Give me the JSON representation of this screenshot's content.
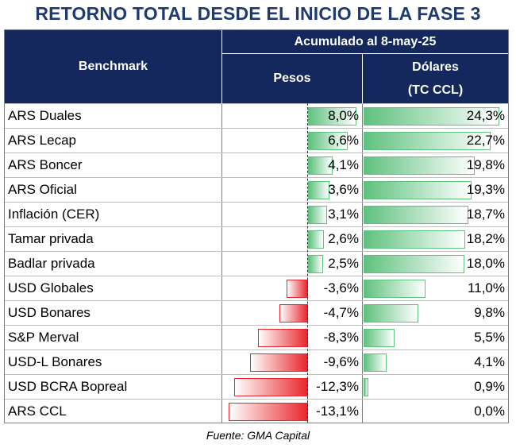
{
  "title": "RETORNO TOTAL DESDE EL INICIO DE LA FASE 3",
  "headers": {
    "benchmark": "Benchmark",
    "acumulado": "Acumulado al 8-may-25",
    "pesos": "Pesos",
    "dolares_line1": "Dólares",
    "dolares_line2": "(TC CCL)"
  },
  "source": "Fuente: GMA Capital",
  "colors": {
    "header_bg": "#14285e",
    "title": "#1f3a6e",
    "positive": "#5fc17e",
    "negative": "#e8262c"
  },
  "chart_data": {
    "type": "table",
    "columns": [
      "Pesos",
      "Dólares (TC CCL)"
    ],
    "rows": [
      {
        "name": "ARS Duales",
        "pesos": 8.0,
        "pesos_label": "8,0%",
        "dolares": 24.3,
        "dolares_label": "24,3%"
      },
      {
        "name": "ARS Lecap",
        "pesos": 6.6,
        "pesos_label": "6,6%",
        "dolares": 22.7,
        "dolares_label": "22,7%"
      },
      {
        "name": "ARS Boncer",
        "pesos": 4.1,
        "pesos_label": "4,1%",
        "dolares": 19.8,
        "dolares_label": "19,8%"
      },
      {
        "name": "ARS Oficial",
        "pesos": 3.6,
        "pesos_label": "3,6%",
        "dolares": 19.3,
        "dolares_label": "19,3%"
      },
      {
        "name": "Inflación (CER)",
        "pesos": 3.1,
        "pesos_label": "3,1%",
        "dolares": 18.7,
        "dolares_label": "18,7%"
      },
      {
        "name": "Tamar privada",
        "pesos": 2.6,
        "pesos_label": "2,6%",
        "dolares": 18.2,
        "dolares_label": "18,2%"
      },
      {
        "name": "Badlar privada",
        "pesos": 2.5,
        "pesos_label": "2,5%",
        "dolares": 18.0,
        "dolares_label": "18,0%"
      },
      {
        "name": "USD Globales",
        "pesos": -3.6,
        "pesos_label": "-3,6%",
        "dolares": 11.0,
        "dolares_label": "11,0%"
      },
      {
        "name": "USD Bonares",
        "pesos": -4.7,
        "pesos_label": "-4,7%",
        "dolares": 9.8,
        "dolares_label": "9,8%"
      },
      {
        "name": "S&P Merval",
        "pesos": -8.3,
        "pesos_label": "-8,3%",
        "dolares": 5.5,
        "dolares_label": "5,5%"
      },
      {
        "name": "USD-L Bonares",
        "pesos": -9.6,
        "pesos_label": "-9,6%",
        "dolares": 4.1,
        "dolares_label": "4,1%"
      },
      {
        "name": "USD BCRA Bopreal",
        "pesos": -12.3,
        "pesos_label": "-12,3%",
        "dolares": 0.9,
        "dolares_label": "0,9%"
      },
      {
        "name": "ARS CCL",
        "pesos": -13.1,
        "pesos_label": "-13,1%",
        "dolares": 0.0,
        "dolares_label": "0,0%"
      }
    ]
  }
}
